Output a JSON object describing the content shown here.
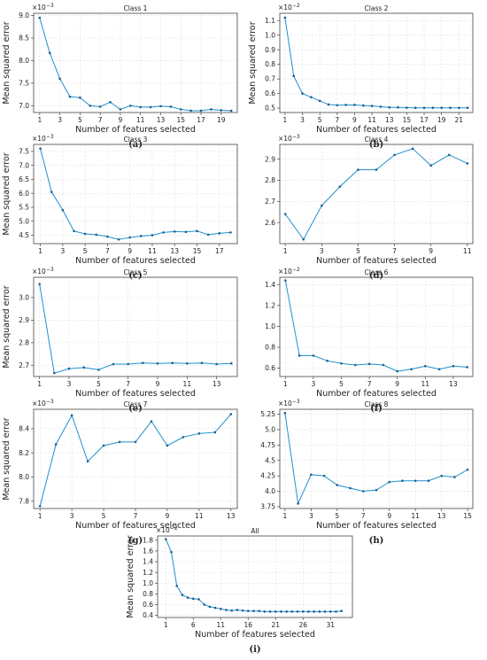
{
  "colors": {
    "line": "#1f8fcf",
    "marker": "#1f5f8f"
  },
  "chart_data": [
    {
      "type": "line",
      "title": "Class 1",
      "panel_label": "(a)",
      "xlabel": "Number of features selected",
      "ylabel": "Mean squared error",
      "scale_label": "1e-3",
      "scale_base": "×10",
      "scale_exp": "−3",
      "xticks": [
        1,
        3,
        5,
        7,
        9,
        11,
        13,
        15,
        17,
        19
      ],
      "yticks": [
        7.0,
        7.5,
        8.0,
        8.5,
        9.0
      ],
      "xlim": [
        0.4,
        20.6
      ],
      "ylim": [
        6.85,
        9.05
      ],
      "x": [
        1,
        2,
        3,
        4,
        5,
        6,
        7,
        8,
        9,
        10,
        11,
        12,
        13,
        14,
        15,
        16,
        17,
        18,
        19,
        20
      ],
      "y": [
        8.95,
        8.17,
        7.6,
        7.2,
        7.18,
        7.0,
        6.98,
        7.08,
        6.92,
        7.0,
        6.97,
        6.97,
        6.99,
        6.98,
        6.92,
        6.89,
        6.89,
        6.92,
        6.9,
        6.89
      ]
    },
    {
      "type": "line",
      "title": "Class 2",
      "panel_label": "(b)",
      "xlabel": "Number of features selected",
      "ylabel": "Mean squared error",
      "scale_label": "1e-2",
      "scale_base": "×10",
      "scale_exp": "−2",
      "xticks": [
        1,
        3,
        5,
        7,
        9,
        11,
        13,
        15,
        17,
        19,
        21
      ],
      "yticks": [
        0.5,
        0.6,
        0.7,
        0.8,
        0.9,
        1.0,
        1.1
      ],
      "xlim": [
        0.4,
        22.6
      ],
      "ylim": [
        0.47,
        1.15
      ],
      "x": [
        1,
        2,
        3,
        4,
        5,
        6,
        7,
        8,
        9,
        10,
        11,
        12,
        13,
        14,
        15,
        16,
        17,
        18,
        19,
        20,
        21,
        22
      ],
      "y": [
        1.12,
        0.72,
        0.6,
        0.575,
        0.55,
        0.525,
        0.52,
        0.522,
        0.522,
        0.518,
        0.515,
        0.51,
        0.505,
        0.505,
        0.503,
        0.502,
        0.502,
        0.502,
        0.502,
        0.502,
        0.502,
        0.502
      ]
    },
    {
      "type": "line",
      "title": "Class 3",
      "panel_label": "(c)",
      "xlabel": "Number of features selected",
      "ylabel": "Mean squared error",
      "scale_label": "1e-3",
      "scale_base": "×10",
      "scale_exp": "−3",
      "xticks": [
        1,
        3,
        5,
        7,
        9,
        11,
        13,
        15,
        17
      ],
      "yticks": [
        4.5,
        5.0,
        5.5,
        6.0,
        6.5,
        7.0,
        7.5
      ],
      "xlim": [
        0.4,
        18.6
      ],
      "ylim": [
        4.2,
        7.75
      ],
      "x": [
        1,
        2,
        3,
        4,
        5,
        6,
        7,
        8,
        9,
        10,
        11,
        12,
        13,
        14,
        15,
        16,
        17,
        18
      ],
      "y": [
        7.6,
        6.05,
        5.4,
        4.65,
        4.55,
        4.52,
        4.45,
        4.35,
        4.42,
        4.47,
        4.5,
        4.6,
        4.63,
        4.62,
        4.65,
        4.52,
        4.57,
        4.6
      ]
    },
    {
      "type": "line",
      "title": "Class 4",
      "panel_label": "(d)",
      "xlabel": "Number of features selected",
      "ylabel": "",
      "scale_label": "1e-3",
      "scale_base": "×10",
      "scale_exp": "−3",
      "xticks": [
        1,
        3,
        5,
        7,
        9,
        11
      ],
      "yticks": [
        2.6,
        2.7,
        2.8,
        2.9
      ],
      "xlim": [
        0.7,
        11.3
      ],
      "ylim": [
        2.5,
        2.97
      ],
      "x": [
        1,
        2,
        3,
        4,
        5,
        6,
        7,
        8,
        9,
        10,
        11
      ],
      "y": [
        2.64,
        2.52,
        2.68,
        2.77,
        2.85,
        2.85,
        2.92,
        2.95,
        2.87,
        2.92,
        2.88
      ]
    },
    {
      "type": "line",
      "title": "Class 5",
      "panel_label": "(e)",
      "xlabel": "Number of features selected",
      "ylabel": "Mean squared error",
      "scale_label": "1e-3",
      "scale_base": "×10",
      "scale_exp": "−3",
      "xticks": [
        1,
        3,
        5,
        7,
        9,
        11,
        13
      ],
      "yticks": [
        2.7,
        2.8,
        2.9,
        3.0
      ],
      "xlim": [
        0.6,
        14.4
      ],
      "ylim": [
        2.65,
        3.09
      ],
      "x": [
        1,
        2,
        3,
        4,
        5,
        6,
        7,
        8,
        9,
        10,
        11,
        12,
        13,
        14
      ],
      "y": [
        3.06,
        2.665,
        2.685,
        2.69,
        2.68,
        2.705,
        2.705,
        2.71,
        2.708,
        2.71,
        2.708,
        2.71,
        2.705,
        2.708
      ]
    },
    {
      "type": "line",
      "title": "Class 6",
      "panel_label": "(f)",
      "xlabel": "Number of features selected",
      "ylabel": "",
      "scale_label": "1e-2",
      "scale_base": "×10",
      "scale_exp": "−2",
      "xticks": [
        1,
        3,
        5,
        7,
        9,
        11,
        13
      ],
      "yticks": [
        0.6,
        0.8,
        1.0,
        1.2,
        1.4
      ],
      "xlim": [
        0.6,
        14.4
      ],
      "ylim": [
        0.52,
        1.47
      ],
      "x": [
        1,
        2,
        3,
        4,
        5,
        6,
        7,
        8,
        9,
        10,
        11,
        12,
        13,
        14
      ],
      "y": [
        1.44,
        0.72,
        0.72,
        0.67,
        0.645,
        0.63,
        0.64,
        0.63,
        0.57,
        0.59,
        0.62,
        0.59,
        0.62,
        0.61
      ]
    },
    {
      "type": "line",
      "title": "Class 7",
      "panel_label": "(g)",
      "xlabel": "Number of features selected",
      "ylabel": "Mean squared error",
      "scale_label": "1e-3",
      "scale_base": "×10",
      "scale_exp": "−3",
      "xticks": [
        1,
        3,
        5,
        7,
        9,
        11,
        13
      ],
      "yticks": [
        7.8,
        8.0,
        8.2,
        8.4
      ],
      "xlim": [
        0.6,
        13.4
      ],
      "ylim": [
        7.74,
        8.56
      ],
      "x": [
        1,
        2,
        3,
        4,
        5,
        6,
        7,
        8,
        9,
        10,
        11,
        12,
        13
      ],
      "y": [
        7.76,
        8.27,
        8.51,
        8.13,
        8.26,
        8.29,
        8.29,
        8.46,
        8.26,
        8.33,
        8.36,
        8.37,
        8.52
      ]
    },
    {
      "type": "line",
      "title": "Class 8",
      "panel_label": "(h)",
      "xlabel": "Number of features selected",
      "ylabel": "",
      "scale_label": "1e-3",
      "scale_base": "×10",
      "scale_exp": "−3",
      "xticks": [
        1,
        3,
        5,
        7,
        9,
        11,
        13,
        15
      ],
      "yticks": [
        3.75,
        4.0,
        4.25,
        4.5,
        4.75,
        5.0,
        5.25
      ],
      "xlim": [
        0.6,
        15.4
      ],
      "ylim": [
        3.72,
        5.33
      ],
      "x": [
        1,
        2,
        3,
        4,
        5,
        6,
        7,
        8,
        9,
        10,
        11,
        12,
        13,
        14,
        15
      ],
      "y": [
        5.27,
        3.8,
        4.27,
        4.25,
        4.1,
        4.05,
        4.0,
        4.02,
        4.15,
        4.17,
        4.17,
        4.17,
        4.25,
        4.23,
        4.35
      ]
    },
    {
      "type": "line",
      "title": "All",
      "panel_label": "(i)",
      "xlabel": "Number of features selected",
      "ylabel": "Mean squared error",
      "scale_label": "1e-2",
      "scale_base": "×10",
      "scale_exp": "−2",
      "xticks": [
        1,
        6,
        11,
        16,
        21,
        26,
        31
      ],
      "yticks": [
        0.4,
        0.6,
        0.8,
        1.0,
        1.2,
        1.4,
        1.6,
        1.8
      ],
      "xlim": [
        -0.5,
        35
      ],
      "ylim": [
        0.36,
        1.88
      ],
      "x": [
        1,
        2,
        3,
        4,
        5,
        6,
        7,
        8,
        9,
        10,
        11,
        12,
        13,
        14,
        15,
        16,
        17,
        18,
        19,
        20,
        21,
        22,
        23,
        24,
        25,
        26,
        27,
        28,
        29,
        30,
        31,
        32,
        33
      ],
      "y": [
        1.82,
        1.58,
        0.95,
        0.78,
        0.73,
        0.71,
        0.7,
        0.6,
        0.56,
        0.54,
        0.52,
        0.5,
        0.49,
        0.5,
        0.49,
        0.48,
        0.48,
        0.48,
        0.47,
        0.47,
        0.47,
        0.47,
        0.47,
        0.47,
        0.47,
        0.47,
        0.47,
        0.47,
        0.47,
        0.47,
        0.47,
        0.47,
        0.48
      ]
    }
  ]
}
